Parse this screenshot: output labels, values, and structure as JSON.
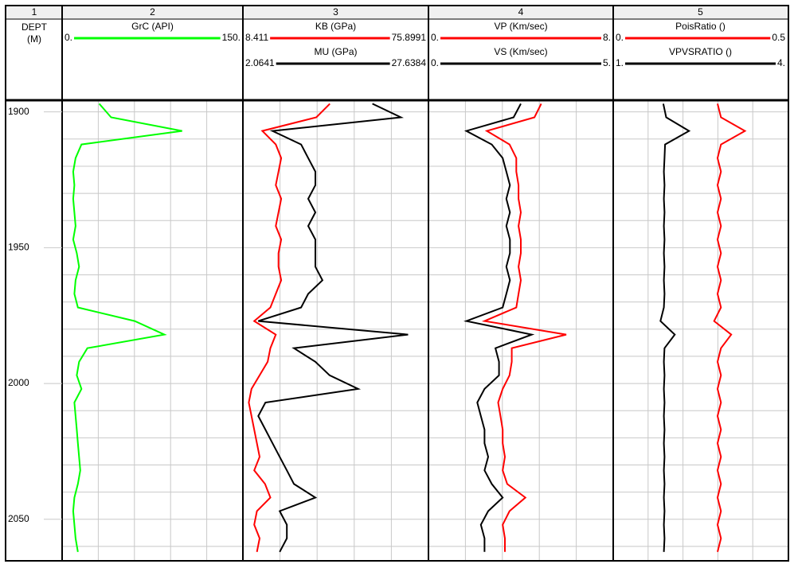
{
  "chart_data": {
    "type": "well-log",
    "track_numbers": [
      "1",
      "2",
      "3",
      "4",
      "5"
    ],
    "depth_title": "DEPT",
    "depth_unit": "(M)",
    "ylim": [
      1896,
      2065
    ],
    "yticks": [
      1900,
      1950,
      2000,
      2050
    ],
    "grid_depths": [
      1900,
      1910,
      1920,
      1930,
      1940,
      1950,
      1960,
      1970,
      1980,
      1990,
      2000,
      2010,
      2020,
      2030,
      2040,
      2050,
      2060
    ],
    "depth": [
      1897,
      1902,
      1907,
      1912,
      1917,
      1922,
      1927,
      1932,
      1937,
      1942,
      1947,
      1952,
      1957,
      1962,
      1967,
      1972,
      1977,
      1982,
      1987,
      1992,
      1997,
      2002,
      2007,
      2012,
      2017,
      2022,
      2027,
      2032,
      2037,
      2042,
      2047,
      2052,
      2057,
      2062
    ],
    "tracks": [
      {
        "curves": [
          {
            "name": "GrC (API)",
            "color": "#00ff00",
            "xlim": [
              {
                "value": 0,
                "label": "0."
              },
              {
                "value": 150,
                "label": "150."
              }
            ],
            "values": [
              30,
              40,
              100,
              15,
              10,
              8,
              9,
              8,
              9,
              10,
              8,
              11,
              13,
              10,
              9,
              12,
              60,
              85,
              20,
              13,
              11,
              15,
              9,
              10,
              11,
              12,
              13,
              14,
              12,
              9,
              8,
              9,
              10,
              12
            ]
          }
        ]
      },
      {
        "curves": [
          {
            "name": "KB (GPa)",
            "color": "#ff0000",
            "xlim": [
              8.411,
              75.8991
            ],
            "values": [
              40,
              35,
              15,
              20,
              22,
              21,
              20,
              22,
              21,
              20,
              22,
              21,
              21,
              22,
              20,
              18,
              12,
              20,
              18,
              17,
              14,
              11,
              10,
              11,
              12,
              13,
              14,
              12,
              16,
              18,
              13,
              12,
              14,
              13
            ]
          },
          {
            "name": "MU (GPa)",
            "color": "#000000",
            "xlim": [
              2.0641,
              27.6384
            ],
            "values": [
              20,
              24,
              6,
              10,
              11,
              12,
              12,
              11,
              12,
              11,
              12,
              12,
              12,
              13,
              11,
              10,
              4,
              25,
              9,
              12,
              14,
              18,
              5,
              4,
              5,
              6,
              7,
              8,
              9,
              12,
              7,
              8,
              8,
              7
            ]
          }
        ]
      },
      {
        "curves": [
          {
            "name": "VP (Km/sec)",
            "color": "#ff0000",
            "xlim": [
              {
                "value": 0,
                "label": "0."
              },
              {
                "value": 8,
                "label": "8."
              }
            ],
            "values": [
              4.9,
              4.6,
              2.5,
              3.5,
              3.8,
              3.8,
              3.9,
              3.9,
              4.0,
              3.9,
              4.0,
              4.0,
              3.9,
              4.0,
              3.9,
              3.8,
              2.4,
              6.0,
              3.6,
              3.6,
              3.5,
              3.2,
              3.0,
              3.1,
              3.2,
              3.2,
              3.3,
              3.2,
              3.4,
              4.2,
              3.5,
              3.2,
              3.3,
              3.3
            ]
          },
          {
            "name": "VS (Km/sec)",
            "color": "#000000",
            "xlim": [
              {
                "value": 0,
                "label": "0."
              },
              {
                "value": 5,
                "label": "5."
              }
            ],
            "values": [
              2.5,
              2.3,
              1.0,
              1.7,
              2.0,
              2.1,
              2.2,
              2.1,
              2.2,
              2.1,
              2.2,
              2.2,
              2.1,
              2.2,
              2.1,
              2.0,
              1.0,
              2.8,
              1.8,
              1.9,
              1.9,
              1.5,
              1.3,
              1.4,
              1.5,
              1.5,
              1.6,
              1.5,
              1.7,
              2.0,
              1.6,
              1.4,
              1.5,
              1.5
            ]
          }
        ]
      },
      {
        "curves": [
          {
            "name": "PoisRatio ()",
            "color": "#ff0000",
            "xlim": [
              {
                "value": 0,
                "label": "0."
              },
              0.5
            ],
            "values": [
              0.3,
              0.31,
              0.38,
              0.31,
              0.3,
              0.31,
              0.3,
              0.31,
              0.3,
              0.31,
              0.3,
              0.31,
              0.3,
              0.31,
              0.3,
              0.31,
              0.29,
              0.34,
              0.31,
              0.3,
              0.31,
              0.3,
              0.31,
              0.3,
              0.31,
              0.3,
              0.31,
              0.3,
              0.31,
              0.3,
              0.31,
              0.3,
              0.31,
              0.3
            ]
          },
          {
            "name": "VPVSRATIO ()",
            "color": "#000000",
            "xlim": [
              {
                "value": 1,
                "label": "1."
              },
              {
                "value": 4,
                "label": "4."
              }
            ],
            "values": [
              1.85,
              1.9,
              2.3,
              1.88,
              1.87,
              1.86,
              1.87,
              1.86,
              1.87,
              1.86,
              1.87,
              1.86,
              1.87,
              1.86,
              1.87,
              1.86,
              1.8,
              2.05,
              1.87,
              1.86,
              1.87,
              1.86,
              1.87,
              1.86,
              1.87,
              1.86,
              1.87,
              1.86,
              1.87,
              1.86,
              1.87,
              1.86,
              1.87,
              1.86
            ]
          }
        ]
      }
    ]
  }
}
